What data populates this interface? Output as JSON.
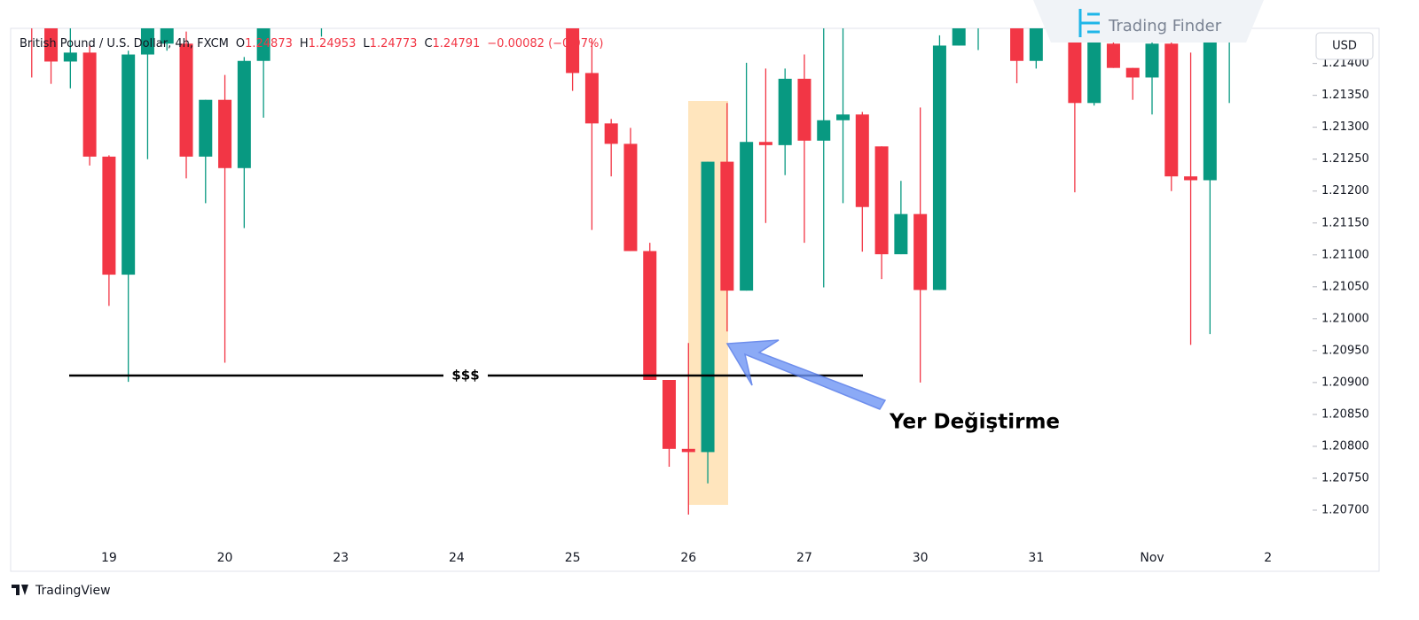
{
  "chart_data": {
    "type": "candlestick",
    "symbol": "British Pound / U.S. Dollar, 4h, FXCM",
    "ohlc_legend": [
      {
        "key": "O",
        "value": "1.24873"
      },
      {
        "key": "H",
        "value": "1.24953"
      },
      {
        "key": "L",
        "value": "1.24773"
      },
      {
        "key": "C",
        "value": "1.24791"
      }
    ],
    "change": "−0.00082 (−0.07%)",
    "currency": "USD",
    "watermark": "Trading Finder",
    "footer": "TradingView",
    "annotation": "Yer Değiştirme",
    "level": {
      "value": 1.20911,
      "label": "$$$"
    },
    "up_color": "#089981",
    "down_color": "#f23645",
    "categories": [
      null,
      null,
      null,
      null,
      null,
      "19",
      null,
      null,
      null,
      null,
      null,
      "20",
      null,
      null,
      null,
      null,
      null,
      "23",
      null,
      null,
      null,
      null,
      null,
      "24",
      null,
      null,
      null,
      null,
      null,
      "25",
      null,
      null,
      null,
      null,
      null,
      "26",
      null,
      null,
      null,
      null,
      null,
      "27",
      null,
      null,
      null,
      null,
      null,
      "30",
      null,
      null,
      null,
      null,
      null,
      "31",
      null,
      null,
      null,
      null,
      null,
      "Nov",
      null,
      null,
      null,
      null,
      null,
      "2"
    ],
    "open": [
      null,
      1.2147,
      1.2146,
      1.21403,
      1.21417,
      1.21254,
      1.21069,
      1.21414,
      1.21431,
      1.21431,
      1.21254,
      1.21343,
      1.21236,
      1.21404,
      null,
      null,
      1.2149,
      null,
      null,
      null,
      null,
      null,
      null,
      null,
      null,
      null,
      null,
      null,
      null,
      1.2148,
      1.21385,
      1.21306,
      1.21274,
      1.21106,
      1.20904,
      1.20796,
      1.20791,
      1.21246,
      1.21044,
      1.21277,
      1.21272,
      1.21376,
      1.21279,
      1.21311,
      1.2132,
      1.2127,
      1.21101,
      1.21164,
      1.21045,
      1.21428,
      1.2148,
      null,
      1.2147,
      1.21404,
      null,
      1.2147,
      1.21338,
      1.21431,
      1.21393,
      1.21378,
      1.21431,
      1.21223,
      1.21217,
      1.2147,
      null,
      null
    ],
    "high": [
      null,
      1.2148,
      1.2148,
      1.2146,
      1.2143,
      1.21256,
      1.2142,
      1.2149,
      1.2149,
      1.2145,
      1.21343,
      1.21382,
      1.2141,
      1.2149,
      null,
      null,
      1.2151,
      null,
      null,
      null,
      null,
      null,
      null,
      null,
      null,
      null,
      null,
      null,
      null,
      1.215,
      1.21437,
      1.21313,
      1.21299,
      1.21119,
      1.20904,
      1.20962,
      1.21246,
      1.21338,
      1.21401,
      1.21392,
      1.21392,
      1.21414,
      1.21455,
      1.2146,
      1.21324,
      1.2127,
      1.21216,
      1.21331,
      1.21444,
      1.2149,
      1.2151,
      null,
      1.2149,
      1.2148,
      null,
      1.2149,
      1.2148,
      1.2146,
      1.21393,
      1.2146,
      1.2146,
      1.21417,
      1.2149,
      1.2149,
      null,
      null
    ],
    "low": [
      null,
      1.21378,
      1.21368,
      1.21361,
      1.2124,
      1.2102,
      1.20901,
      1.2125,
      1.2142,
      1.2122,
      1.21181,
      1.20931,
      1.21142,
      1.21315,
      null,
      null,
      1.21442,
      null,
      null,
      null,
      null,
      null,
      null,
      null,
      null,
      null,
      null,
      null,
      null,
      1.21357,
      1.21139,
      1.21223,
      1.21106,
      1.20904,
      1.20768,
      1.20693,
      1.20742,
      1.2098,
      1.21044,
      1.2115,
      1.21225,
      1.21119,
      1.21049,
      1.21181,
      1.21105,
      1.21062,
      1.21101,
      1.209,
      1.21045,
      1.21428,
      1.21421,
      null,
      1.21369,
      1.21392,
      null,
      1.21198,
      1.21334,
      1.21393,
      1.21343,
      1.2132,
      1.212,
      1.20959,
      1.20976,
      1.21338,
      null,
      null
    ],
    "close": [
      null,
      1.2146,
      1.21403,
      1.21417,
      1.21254,
      1.21069,
      1.21414,
      1.2147,
      1.2147,
      1.21254,
      1.21343,
      1.21236,
      1.21404,
      1.2147,
      null,
      null,
      1.215,
      null,
      null,
      null,
      null,
      null,
      null,
      null,
      null,
      null,
      null,
      null,
      null,
      1.21385,
      1.21306,
      1.21274,
      1.21106,
      1.20904,
      1.20796,
      1.20791,
      1.21246,
      1.21044,
      1.21277,
      1.21272,
      1.21376,
      1.21279,
      1.21311,
      1.2132,
      1.21175,
      1.21101,
      1.21164,
      1.21045,
      1.21428,
      1.2147,
      1.215,
      null,
      1.21404,
      1.2146,
      null,
      1.21338,
      1.2146,
      1.21393,
      1.21378,
      1.21431,
      1.21223,
      1.21217,
      1.2147,
      1.2148,
      null,
      null
    ],
    "ylim": [
      1.2065,
      1.21455
    ],
    "yticks": [
      {
        "value": 1.207,
        "label": "1.20700"
      },
      {
        "value": 1.2075,
        "label": "1.20750"
      },
      {
        "value": 1.208,
        "label": "1.20800"
      },
      {
        "value": 1.2085,
        "label": "1.20850"
      },
      {
        "value": 1.209,
        "label": "1.20900"
      },
      {
        "value": 1.2095,
        "label": "1.20950"
      },
      {
        "value": 1.21,
        "label": "1.21000"
      },
      {
        "value": 1.2105,
        "label": "1.21050"
      },
      {
        "value": 1.211,
        "label": "1.21100"
      },
      {
        "value": 1.2115,
        "label": "1.21150"
      },
      {
        "value": 1.212,
        "label": "1.21200"
      },
      {
        "value": 1.2125,
        "label": "1.21250"
      },
      {
        "value": 1.213,
        "label": "1.21300"
      },
      {
        "value": 1.2135,
        "label": "1.21350"
      },
      {
        "value": 1.214,
        "label": "1.21400"
      }
    ]
  }
}
